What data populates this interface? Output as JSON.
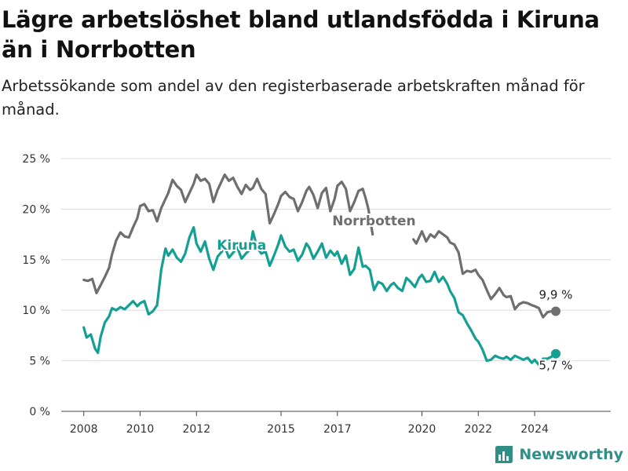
{
  "title": "Lägre arbetslöshet bland utlandsfödda i Kiruna än i Norrbotten",
  "subtitle": "Arbetssökande som andel av den registerbaserade arbetskraften månad för månad.",
  "brand": {
    "name": "Newsworthy"
  },
  "chart_data": {
    "type": "line",
    "x_unit": "year",
    "ylim": [
      0,
      25
    ],
    "xlim": [
      2007.2,
      2026.7
    ],
    "y_ticks": [
      0,
      5,
      10,
      15,
      20,
      25
    ],
    "y_tick_labels": [
      "0 %",
      "5 %",
      "10 %",
      "15 %",
      "20 %",
      "25 %"
    ],
    "x_ticks": [
      2008,
      2010,
      2012,
      2015,
      2017,
      2020,
      2022,
      2024
    ],
    "x_tick_labels": [
      "2008",
      "2010",
      "2012",
      "2015",
      "2017",
      "2020",
      "2022",
      "2024"
    ],
    "grid": "horizontal",
    "series": [
      {
        "name": "Norrbotten",
        "color": "#6e6e6e",
        "end_label": "9,9 %",
        "points": [
          [
            2008.0,
            13.0
          ],
          [
            2008.15,
            12.9
          ],
          [
            2008.3,
            13.1
          ],
          [
            2008.45,
            11.7
          ],
          [
            2008.6,
            12.5
          ],
          [
            2008.75,
            13.3
          ],
          [
            2008.9,
            14.2
          ],
          [
            2009.0,
            15.5
          ],
          [
            2009.15,
            16.9
          ],
          [
            2009.3,
            17.7
          ],
          [
            2009.45,
            17.3
          ],
          [
            2009.6,
            17.2
          ],
          [
            2009.75,
            18.2
          ],
          [
            2009.9,
            19.1
          ],
          [
            2010.0,
            20.3
          ],
          [
            2010.15,
            20.5
          ],
          [
            2010.3,
            19.8
          ],
          [
            2010.45,
            19.9
          ],
          [
            2010.6,
            18.8
          ],
          [
            2010.75,
            20.1
          ],
          [
            2010.9,
            21.0
          ],
          [
            2011.0,
            21.6
          ],
          [
            2011.15,
            22.9
          ],
          [
            2011.3,
            22.3
          ],
          [
            2011.45,
            21.9
          ],
          [
            2011.6,
            20.7
          ],
          [
            2011.75,
            21.6
          ],
          [
            2011.9,
            22.5
          ],
          [
            2012.0,
            23.4
          ],
          [
            2012.15,
            22.8
          ],
          [
            2012.3,
            23.0
          ],
          [
            2012.45,
            22.5
          ],
          [
            2012.6,
            20.7
          ],
          [
            2012.75,
            21.9
          ],
          [
            2012.9,
            22.8
          ],
          [
            2013.0,
            23.4
          ],
          [
            2013.15,
            22.8
          ],
          [
            2013.3,
            23.1
          ],
          [
            2013.45,
            22.2
          ],
          [
            2013.6,
            21.5
          ],
          [
            2013.75,
            22.4
          ],
          [
            2013.9,
            21.9
          ],
          [
            2014.0,
            22.1
          ],
          [
            2014.15,
            23.0
          ],
          [
            2014.3,
            22.0
          ],
          [
            2014.45,
            21.5
          ],
          [
            2014.6,
            18.6
          ],
          [
            2014.75,
            19.5
          ],
          [
            2014.9,
            20.5
          ],
          [
            2015.0,
            21.3
          ],
          [
            2015.15,
            21.7
          ],
          [
            2015.3,
            21.2
          ],
          [
            2015.45,
            21.0
          ],
          [
            2015.6,
            19.8
          ],
          [
            2015.75,
            20.7
          ],
          [
            2015.9,
            21.8
          ],
          [
            2016.0,
            22.2
          ],
          [
            2016.15,
            21.4
          ],
          [
            2016.3,
            20.1
          ],
          [
            2016.45,
            21.6
          ],
          [
            2016.6,
            22.1
          ],
          [
            2016.75,
            19.8
          ],
          [
            2016.9,
            21.0
          ],
          [
            2017.0,
            22.3
          ],
          [
            2017.15,
            22.7
          ],
          [
            2017.3,
            22.0
          ],
          [
            2017.45,
            19.8
          ],
          [
            2017.6,
            20.7
          ],
          [
            2017.75,
            21.8
          ],
          [
            2017.9,
            22.0
          ],
          [
            2018.0,
            21.1
          ],
          [
            2018.1,
            20.0
          ],
          [
            2018.25,
            17.5
          ],
          [
            2019.7,
            17.0
          ],
          [
            2019.8,
            16.6
          ],
          [
            2019.9,
            17.2
          ],
          [
            2020.0,
            17.8
          ],
          [
            2020.15,
            16.8
          ],
          [
            2020.3,
            17.5
          ],
          [
            2020.45,
            17.2
          ],
          [
            2020.6,
            17.8
          ],
          [
            2020.75,
            17.5
          ],
          [
            2020.9,
            17.2
          ],
          [
            2021.0,
            16.7
          ],
          [
            2021.15,
            16.5
          ],
          [
            2021.3,
            15.7
          ],
          [
            2021.45,
            13.6
          ],
          [
            2021.6,
            13.9
          ],
          [
            2021.75,
            13.8
          ],
          [
            2021.9,
            14.0
          ],
          [
            2022.0,
            13.5
          ],
          [
            2022.15,
            13.0
          ],
          [
            2022.3,
            12.0
          ],
          [
            2022.45,
            11.1
          ],
          [
            2022.6,
            11.6
          ],
          [
            2022.75,
            12.2
          ],
          [
            2022.9,
            11.5
          ],
          [
            2023.0,
            11.3
          ],
          [
            2023.15,
            11.4
          ],
          [
            2023.3,
            10.1
          ],
          [
            2023.45,
            10.6
          ],
          [
            2023.6,
            10.8
          ],
          [
            2023.75,
            10.7
          ],
          [
            2023.9,
            10.5
          ],
          [
            2024.0,
            10.4
          ],
          [
            2024.15,
            10.2
          ],
          [
            2024.3,
            9.3
          ],
          [
            2024.45,
            9.8
          ],
          [
            2024.6,
            9.9
          ],
          [
            2024.75,
            9.9
          ]
        ]
      },
      {
        "name": "Kiruna",
        "color": "#13a092",
        "end_label": "5,7 %",
        "points": [
          [
            2008.0,
            8.3
          ],
          [
            2008.1,
            7.3
          ],
          [
            2008.25,
            7.6
          ],
          [
            2008.4,
            6.2
          ],
          [
            2008.5,
            5.8
          ],
          [
            2008.6,
            7.4
          ],
          [
            2008.75,
            8.8
          ],
          [
            2008.9,
            9.4
          ],
          [
            2009.0,
            10.2
          ],
          [
            2009.15,
            10.0
          ],
          [
            2009.3,
            10.3
          ],
          [
            2009.45,
            10.1
          ],
          [
            2009.6,
            10.5
          ],
          [
            2009.75,
            10.9
          ],
          [
            2009.9,
            10.4
          ],
          [
            2010.0,
            10.7
          ],
          [
            2010.15,
            10.9
          ],
          [
            2010.3,
            9.6
          ],
          [
            2010.45,
            9.9
          ],
          [
            2010.6,
            10.5
          ],
          [
            2010.75,
            14.0
          ],
          [
            2010.9,
            16.1
          ],
          [
            2011.0,
            15.4
          ],
          [
            2011.15,
            16.0
          ],
          [
            2011.3,
            15.2
          ],
          [
            2011.45,
            14.8
          ],
          [
            2011.6,
            15.6
          ],
          [
            2011.75,
            17.2
          ],
          [
            2011.9,
            18.2
          ],
          [
            2012.0,
            16.6
          ],
          [
            2012.15,
            15.8
          ],
          [
            2012.3,
            16.8
          ],
          [
            2012.45,
            15.1
          ],
          [
            2012.6,
            14.0
          ],
          [
            2012.75,
            15.3
          ],
          [
            2012.9,
            15.8
          ],
          [
            2013.0,
            16.3
          ],
          [
            2013.15,
            15.2
          ],
          [
            2013.3,
            15.7
          ],
          [
            2013.45,
            16.2
          ],
          [
            2013.6,
            15.1
          ],
          [
            2013.75,
            15.6
          ],
          [
            2013.9,
            16.0
          ],
          [
            2014.0,
            17.8
          ],
          [
            2014.15,
            16.2
          ],
          [
            2014.3,
            15.6
          ],
          [
            2014.45,
            15.8
          ],
          [
            2014.6,
            14.4
          ],
          [
            2014.75,
            15.4
          ],
          [
            2014.9,
            16.5
          ],
          [
            2015.0,
            17.4
          ],
          [
            2015.15,
            16.3
          ],
          [
            2015.3,
            15.8
          ],
          [
            2015.45,
            16.0
          ],
          [
            2015.6,
            14.9
          ],
          [
            2015.75,
            15.5
          ],
          [
            2015.9,
            16.6
          ],
          [
            2016.0,
            16.2
          ],
          [
            2016.15,
            15.1
          ],
          [
            2016.3,
            15.8
          ],
          [
            2016.45,
            16.6
          ],
          [
            2016.6,
            15.2
          ],
          [
            2016.75,
            15.9
          ],
          [
            2016.9,
            15.4
          ],
          [
            2017.0,
            15.8
          ],
          [
            2017.15,
            14.6
          ],
          [
            2017.3,
            15.4
          ],
          [
            2017.45,
            13.5
          ],
          [
            2017.6,
            14.1
          ],
          [
            2017.75,
            16.2
          ],
          [
            2017.9,
            14.3
          ],
          [
            2018.0,
            14.4
          ],
          [
            2018.15,
            14.0
          ],
          [
            2018.3,
            12.0
          ],
          [
            2018.45,
            12.8
          ],
          [
            2018.6,
            12.6
          ],
          [
            2018.75,
            11.9
          ],
          [
            2018.9,
            12.5
          ],
          [
            2019.0,
            12.7
          ],
          [
            2019.15,
            12.2
          ],
          [
            2019.3,
            11.9
          ],
          [
            2019.45,
            13.2
          ],
          [
            2019.6,
            12.8
          ],
          [
            2019.75,
            12.3
          ],
          [
            2019.9,
            13.2
          ],
          [
            2020.0,
            13.5
          ],
          [
            2020.15,
            12.8
          ],
          [
            2020.3,
            12.9
          ],
          [
            2020.45,
            13.8
          ],
          [
            2020.6,
            12.8
          ],
          [
            2020.75,
            13.3
          ],
          [
            2020.9,
            12.6
          ],
          [
            2021.0,
            11.9
          ],
          [
            2021.15,
            11.2
          ],
          [
            2021.3,
            9.8
          ],
          [
            2021.45,
            9.5
          ],
          [
            2021.6,
            8.7
          ],
          [
            2021.75,
            8.0
          ],
          [
            2021.9,
            7.2
          ],
          [
            2022.0,
            6.9
          ],
          [
            2022.15,
            6.1
          ],
          [
            2022.3,
            5.0
          ],
          [
            2022.45,
            5.1
          ],
          [
            2022.6,
            5.5
          ],
          [
            2022.75,
            5.3
          ],
          [
            2022.9,
            5.2
          ],
          [
            2023.0,
            5.4
          ],
          [
            2023.15,
            5.1
          ],
          [
            2023.3,
            5.5
          ],
          [
            2023.45,
            5.3
          ],
          [
            2023.6,
            5.1
          ],
          [
            2023.75,
            5.3
          ],
          [
            2023.9,
            4.8
          ],
          [
            2024.0,
            5.1
          ],
          [
            2024.15,
            4.6
          ],
          [
            2024.3,
            5.2
          ],
          [
            2024.45,
            5.2
          ],
          [
            2024.6,
            5.4
          ],
          [
            2024.75,
            5.7
          ]
        ]
      }
    ]
  }
}
